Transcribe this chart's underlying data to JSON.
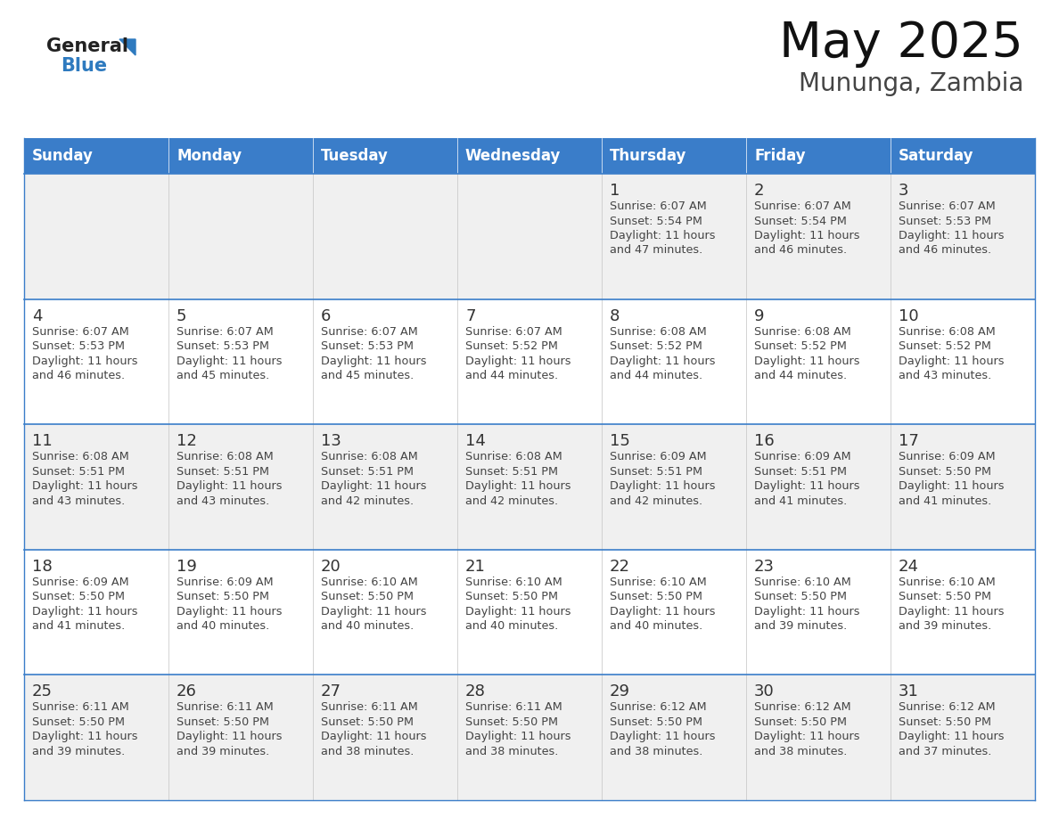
{
  "title": "May 2025",
  "subtitle": "Mununga, Zambia",
  "days_of_week": [
    "Sunday",
    "Monday",
    "Tuesday",
    "Wednesday",
    "Thursday",
    "Friday",
    "Saturday"
  ],
  "header_bg": "#3A7DC9",
  "header_text": "#FFFFFF",
  "cell_bg_light": "#F0F0F0",
  "cell_bg_white": "#FFFFFF",
  "row_border_color": "#3A7DC9",
  "col_border_color": "#CCCCCC",
  "day_number_color": "#333333",
  "info_text_color": "#444444",
  "title_color": "#111111",
  "subtitle_color": "#444444",
  "logo_general_color": "#222222",
  "logo_blue_color": "#2E7ABF",
  "logo_tri_color": "#2E7ABF",
  "calendar_data": [
    [
      null,
      null,
      null,
      null,
      {
        "day": 1,
        "sunrise": "6:07 AM",
        "sunset": "5:54 PM",
        "daylight": "11 hours and 47 minutes."
      },
      {
        "day": 2,
        "sunrise": "6:07 AM",
        "sunset": "5:54 PM",
        "daylight": "11 hours and 46 minutes."
      },
      {
        "day": 3,
        "sunrise": "6:07 AM",
        "sunset": "5:53 PM",
        "daylight": "11 hours and 46 minutes."
      }
    ],
    [
      {
        "day": 4,
        "sunrise": "6:07 AM",
        "sunset": "5:53 PM",
        "daylight": "11 hours and 46 minutes."
      },
      {
        "day": 5,
        "sunrise": "6:07 AM",
        "sunset": "5:53 PM",
        "daylight": "11 hours and 45 minutes."
      },
      {
        "day": 6,
        "sunrise": "6:07 AM",
        "sunset": "5:53 PM",
        "daylight": "11 hours and 45 minutes."
      },
      {
        "day": 7,
        "sunrise": "6:07 AM",
        "sunset": "5:52 PM",
        "daylight": "11 hours and 44 minutes."
      },
      {
        "day": 8,
        "sunrise": "6:08 AM",
        "sunset": "5:52 PM",
        "daylight": "11 hours and 44 minutes."
      },
      {
        "day": 9,
        "sunrise": "6:08 AM",
        "sunset": "5:52 PM",
        "daylight": "11 hours and 44 minutes."
      },
      {
        "day": 10,
        "sunrise": "6:08 AM",
        "sunset": "5:52 PM",
        "daylight": "11 hours and 43 minutes."
      }
    ],
    [
      {
        "day": 11,
        "sunrise": "6:08 AM",
        "sunset": "5:51 PM",
        "daylight": "11 hours and 43 minutes."
      },
      {
        "day": 12,
        "sunrise": "6:08 AM",
        "sunset": "5:51 PM",
        "daylight": "11 hours and 43 minutes."
      },
      {
        "day": 13,
        "sunrise": "6:08 AM",
        "sunset": "5:51 PM",
        "daylight": "11 hours and 42 minutes."
      },
      {
        "day": 14,
        "sunrise": "6:08 AM",
        "sunset": "5:51 PM",
        "daylight": "11 hours and 42 minutes."
      },
      {
        "day": 15,
        "sunrise": "6:09 AM",
        "sunset": "5:51 PM",
        "daylight": "11 hours and 42 minutes."
      },
      {
        "day": 16,
        "sunrise": "6:09 AM",
        "sunset": "5:51 PM",
        "daylight": "11 hours and 41 minutes."
      },
      {
        "day": 17,
        "sunrise": "6:09 AM",
        "sunset": "5:50 PM",
        "daylight": "11 hours and 41 minutes."
      }
    ],
    [
      {
        "day": 18,
        "sunrise": "6:09 AM",
        "sunset": "5:50 PM",
        "daylight": "11 hours and 41 minutes."
      },
      {
        "day": 19,
        "sunrise": "6:09 AM",
        "sunset": "5:50 PM",
        "daylight": "11 hours and 40 minutes."
      },
      {
        "day": 20,
        "sunrise": "6:10 AM",
        "sunset": "5:50 PM",
        "daylight": "11 hours and 40 minutes."
      },
      {
        "day": 21,
        "sunrise": "6:10 AM",
        "sunset": "5:50 PM",
        "daylight": "11 hours and 40 minutes."
      },
      {
        "day": 22,
        "sunrise": "6:10 AM",
        "sunset": "5:50 PM",
        "daylight": "11 hours and 40 minutes."
      },
      {
        "day": 23,
        "sunrise": "6:10 AM",
        "sunset": "5:50 PM",
        "daylight": "11 hours and 39 minutes."
      },
      {
        "day": 24,
        "sunrise": "6:10 AM",
        "sunset": "5:50 PM",
        "daylight": "11 hours and 39 minutes."
      }
    ],
    [
      {
        "day": 25,
        "sunrise": "6:11 AM",
        "sunset": "5:50 PM",
        "daylight": "11 hours and 39 minutes."
      },
      {
        "day": 26,
        "sunrise": "6:11 AM",
        "sunset": "5:50 PM",
        "daylight": "11 hours and 39 minutes."
      },
      {
        "day": 27,
        "sunrise": "6:11 AM",
        "sunset": "5:50 PM",
        "daylight": "11 hours and 38 minutes."
      },
      {
        "day": 28,
        "sunrise": "6:11 AM",
        "sunset": "5:50 PM",
        "daylight": "11 hours and 38 minutes."
      },
      {
        "day": 29,
        "sunrise": "6:12 AM",
        "sunset": "5:50 PM",
        "daylight": "11 hours and 38 minutes."
      },
      {
        "day": 30,
        "sunrise": "6:12 AM",
        "sunset": "5:50 PM",
        "daylight": "11 hours and 38 minutes."
      },
      {
        "day": 31,
        "sunrise": "6:12 AM",
        "sunset": "5:50 PM",
        "daylight": "11 hours and 37 minutes."
      }
    ]
  ]
}
